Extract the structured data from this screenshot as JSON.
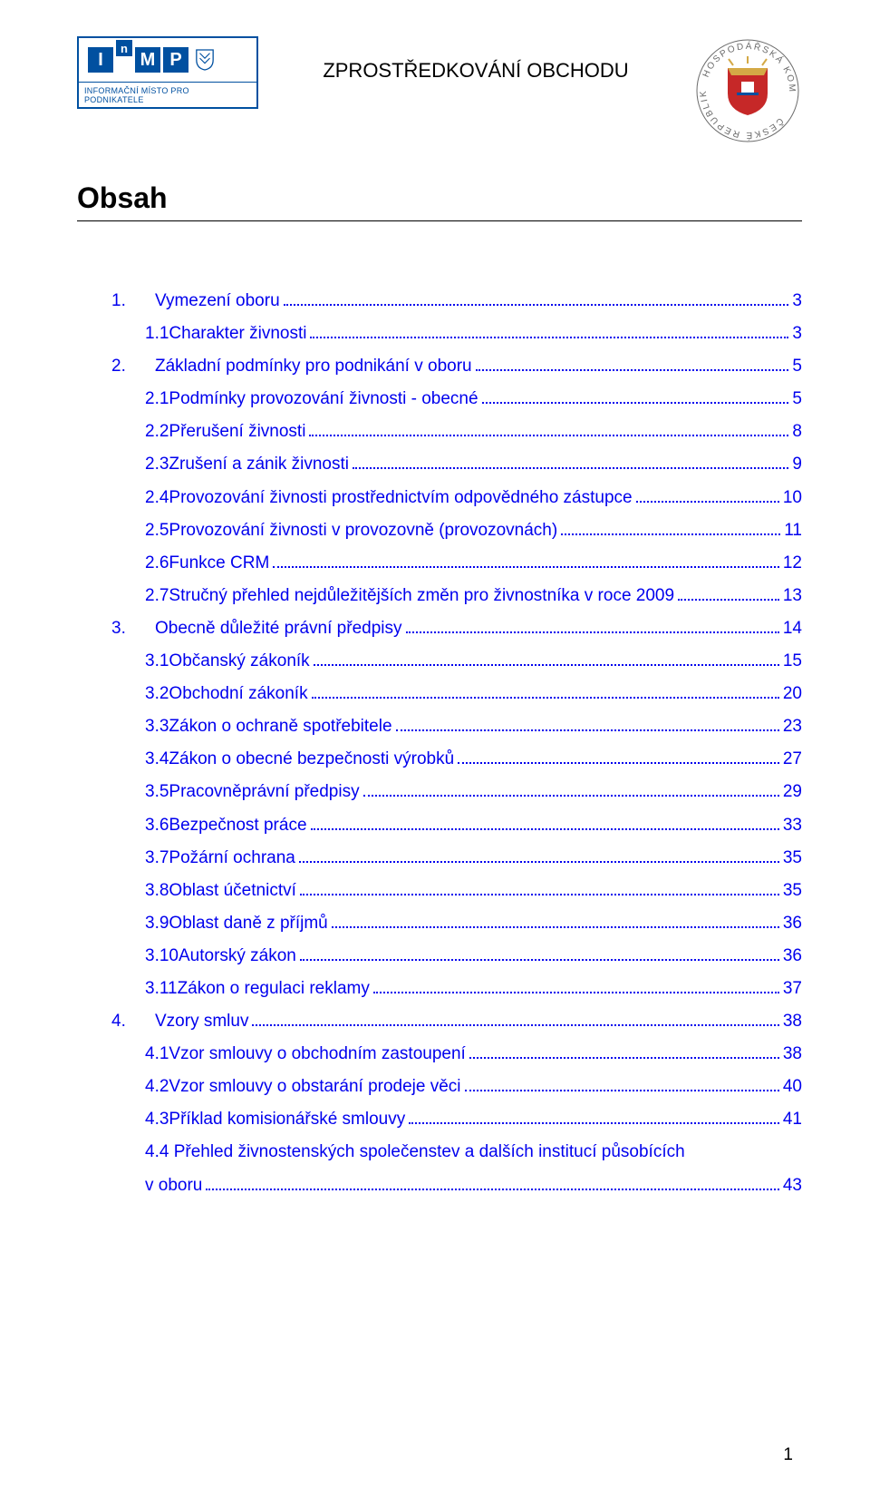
{
  "header": {
    "doc_title": "ZPROSTŘEDKOVÁNÍ OBCHODU",
    "logo_left_tagline": "INFORMAČNÍ MÍSTO PRO PODNIKATELE",
    "logo_letters": [
      "I",
      "n",
      "M",
      "P"
    ]
  },
  "heading": "Obsah",
  "toc": [
    {
      "lvl": 1,
      "num": "1.",
      "label": "Vymezení oboru",
      "page": "3"
    },
    {
      "lvl": 2,
      "num": "1.1",
      "label": "Charakter živnosti",
      "page": "3"
    },
    {
      "lvl": 1,
      "num": "2.",
      "label": "Základní podmínky pro podnikání v oboru",
      "page": "5"
    },
    {
      "lvl": 2,
      "num": "2.1",
      "label": "Podmínky provozování živnosti - obecné",
      "page": "5"
    },
    {
      "lvl": 2,
      "num": "2.2",
      "label": "Přerušení živnosti",
      "page": "8"
    },
    {
      "lvl": 2,
      "num": "2.3",
      "label": "Zrušení a zánik živnosti",
      "page": "9"
    },
    {
      "lvl": 2,
      "num": "2.4",
      "label": "Provozování živnosti prostřednictvím odpovědného zástupce",
      "page": "10"
    },
    {
      "lvl": 2,
      "num": "2.5",
      "label": "Provozování živnosti v provozovně (provozovnách)",
      "page": "11"
    },
    {
      "lvl": 2,
      "num": "2.6",
      "label": "Funkce CRM",
      "page": "12"
    },
    {
      "lvl": 2,
      "num": "2.7",
      "label": "Stručný přehled nejdůležitějších změn pro živnostníka v roce 2009",
      "page": "13"
    },
    {
      "lvl": 1,
      "num": "3.",
      "label": "Obecně důležité právní předpisy",
      "page": "14"
    },
    {
      "lvl": 2,
      "num": "3.1",
      "label": "Občanský zákoník",
      "page": "15"
    },
    {
      "lvl": 2,
      "num": "3.2",
      "label": "Obchodní zákoník",
      "page": "20"
    },
    {
      "lvl": 2,
      "num": "3.3",
      "label": "Zákon o ochraně spotřebitele",
      "page": "23"
    },
    {
      "lvl": 2,
      "num": "3.4",
      "label": "Zákon o obecné bezpečnosti výrobků",
      "page": "27"
    },
    {
      "lvl": 2,
      "num": "3.5",
      "label": "Pracovněprávní předpisy",
      "page": "29"
    },
    {
      "lvl": 2,
      "num": "3.6",
      "label": "Bezpečnost práce",
      "page": "33"
    },
    {
      "lvl": 2,
      "num": "3.7",
      "label": "Požární ochrana",
      "page": "35"
    },
    {
      "lvl": 2,
      "num": "3.8",
      "label": "Oblast účetnictví",
      "page": "35"
    },
    {
      "lvl": 2,
      "num": "3.9",
      "label": "Oblast daně z příjmů",
      "page": "36"
    },
    {
      "lvl": 2,
      "num": "3.10",
      "label": " Autorský zákon",
      "page": "36"
    },
    {
      "lvl": 2,
      "num": "3.11",
      "label": " Zákon o regulaci reklamy",
      "page": "37"
    },
    {
      "lvl": 1,
      "num": "4.",
      "label": "Vzory smluv",
      "page": "38"
    },
    {
      "lvl": 2,
      "num": "4.1",
      "label": "Vzor smlouvy o obchodním zastoupení",
      "page": "38"
    },
    {
      "lvl": 2,
      "num": "4.2",
      "label": "Vzor smlouvy o obstarání prodeje věci",
      "page": "40"
    },
    {
      "lvl": 2,
      "num": "4.3",
      "label": "Příklad komisionářské smlouvy",
      "page": "41"
    }
  ],
  "toc_wrapped": {
    "num": "4.4",
    "label_line1": "Přehled živnostenských společenstev a dalších institucí působících",
    "label_line2": "v oboru",
    "page": "43"
  },
  "page_number": "1",
  "colors": {
    "link": "#0000ee",
    "brand_blue": "#0050a0",
    "seal_red": "#c62828",
    "seal_gold": "#d4a946",
    "seal_text": "#6b6b6b"
  }
}
